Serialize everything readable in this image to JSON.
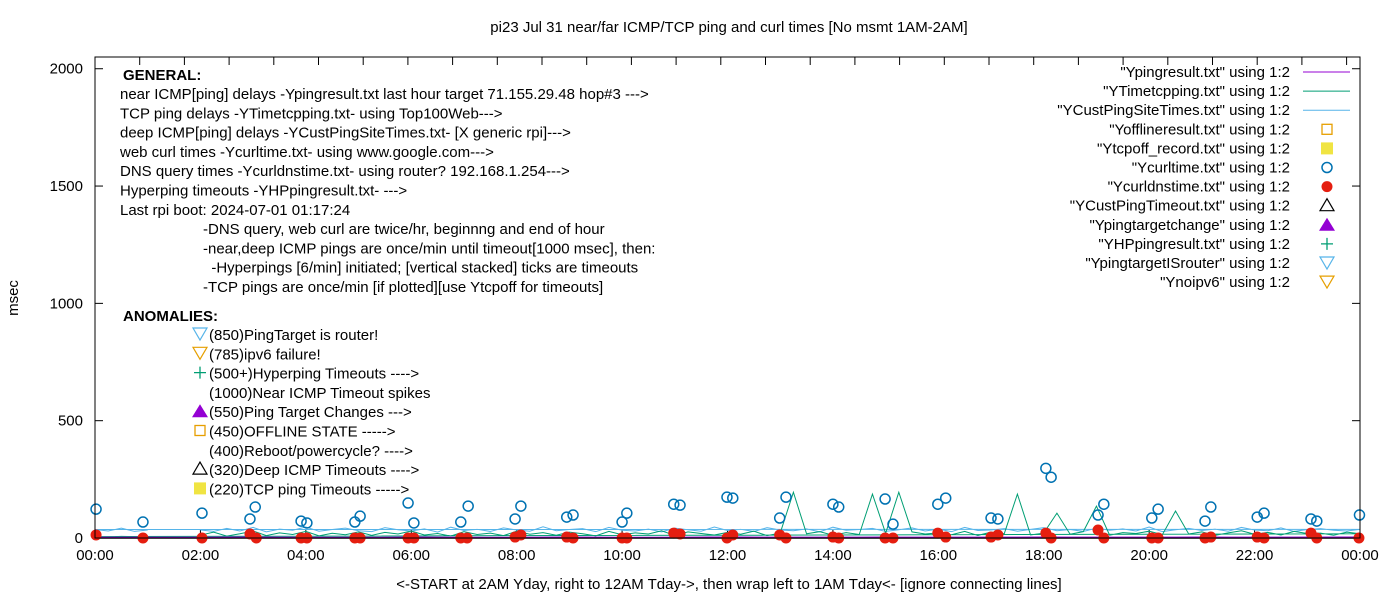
{
  "chart_data": {
    "type": "line",
    "title": "pi23 Jul 31  near/far ICMP/TCP ping and curl times [No msmt 1AM-2AM]",
    "xlabel": "<-START at 2AM Yday, right to 12AM Tday->, then wrap left to 1AM Tday<- [ignore connecting lines]",
    "ylabel": "msec",
    "xlim_hours": [
      0,
      24
    ],
    "ylim": [
      0,
      2050
    ],
    "x_tick_labels": [
      "00:00",
      "02:00",
      "04:00",
      "06:00",
      "08:00",
      "10:00",
      "12:00",
      "14:00",
      "16:00",
      "18:00",
      "20:00",
      "22:00",
      "00:00"
    ],
    "y_ticks": [
      0,
      500,
      1000,
      1500,
      2000
    ],
    "grid": false,
    "legend_placement": "top-right",
    "legend": [
      {
        "label": "\"Ypingresult.txt\" using 1:2",
        "marker": "line",
        "color": "#9400d3"
      },
      {
        "label": "\"YTimetcpping.txt\" using 1:2",
        "marker": "line",
        "color": "#009e73"
      },
      {
        "label": "\"YCustPingSiteTimes.txt\" using 1:2",
        "marker": "line",
        "color": "#56b4e9"
      },
      {
        "label": "\"Yofflineresult.txt\" using 1:2",
        "marker": "open-square",
        "color": "#e69f00"
      },
      {
        "label": "\"Ytcpoff_record.txt\" using 1:2",
        "marker": "filled-square",
        "color": "#f0e442"
      },
      {
        "label": "\"Ycurltime.txt\" using 1:2",
        "marker": "open-circle",
        "color": "#0072b2"
      },
      {
        "label": "\"Ycurldnstime.txt\" using 1:2",
        "marker": "filled-circle",
        "color": "#e51e10"
      },
      {
        "label": "\"YCustPingTimeout.txt\" using 1:2",
        "marker": "open-triangle",
        "color": "#000000"
      },
      {
        "label": "\"Ypingtargetchange\" using 1:2",
        "marker": "filled-triangle",
        "color": "#9400d3"
      },
      {
        "label": "\"YHPpingresult.txt\" using 1:2",
        "marker": "plus",
        "color": "#009e73"
      },
      {
        "label": "\"YpingtargetISrouter\" using 1:2",
        "marker": "open-down-triangle",
        "color": "#56b4e9"
      },
      {
        "label": "\"Ynoipv6\" using 1:2",
        "marker": "open-down-triangle",
        "color": "#e69f00"
      }
    ],
    "series": [
      {
        "name": "\"Ypingresult.txt\" using 1:2",
        "color": "#9400d3",
        "segments": [
          {
            "x_from": 2,
            "step_hours": 1,
            "values": [
              3,
              4,
              3,
              3,
              4,
              3,
              3,
              4,
              3,
              3,
              4,
              3,
              3,
              4,
              3,
              3,
              4,
              3,
              3,
              4,
              3,
              3,
              4
            ]
          },
          {
            "x_from": 0,
            "step_hours": 1,
            "values": [
              3,
              3
            ]
          }
        ]
      },
      {
        "name": "\"YTimetcpping.txt\" using 1:2",
        "color": "#009e73",
        "segments": [
          {
            "x_from": 2,
            "step_hours": 0.25,
            "values": [
              12,
              25,
              8,
              18,
              30,
              10,
              22,
              15,
              28,
              9,
              20,
              14,
              26,
              11,
              24,
              17,
              30,
              13,
              19,
              8,
              27,
              15,
              21,
              10,
              29,
              16,
              23,
              12,
              25,
              18,
              9,
              28,
              14,
              22,
              17,
              31,
              11,
              26,
              19,
              13,
              24,
              16,
              29,
              10,
              21,
              195,
              18,
              27,
              12,
              23,
              15,
              187,
              20,
              195,
              26,
              17,
              22,
              14,
              28,
              11,
              25,
              18,
              187,
              13,
              21,
              106,
              16,
              27,
              136,
              12,
              23,
              19,
              29,
              14,
              115,
              17,
              26,
              11,
              22,
              31,
              16,
              24,
              13,
              28,
              19,
              21,
              12,
              25,
              18
            ]
          },
          {
            "x_from": 0,
            "step_hours": 0.25,
            "values": [
              6,
              5,
              7,
              6,
              5
            ]
          }
        ]
      },
      {
        "name": "\"YCustPingSiteTimes.txt\" using 1:2",
        "color": "#56b4e9",
        "segments": [
          {
            "x_from": 2,
            "step_hours": 0.25,
            "values": [
              34,
              28,
              41,
              30,
              45,
              26,
              38,
              33,
              47,
              29,
              36,
              42,
              31,
              27,
              44,
              35,
              30,
              39,
              25,
              46,
              32,
              37,
              28,
              43,
              34,
              29,
              48,
              31,
              36,
              40,
              27,
              45,
              33,
              30,
              38,
              26,
              42,
              35,
              29,
              47,
              32,
              37,
              28,
              44,
              34,
              31,
              39,
              26,
              46,
              33,
              36,
              41,
              28,
              35,
              43,
              30,
              38,
              27,
              45,
              32,
              34,
              40,
              29,
              37,
              44,
              31,
              36,
              28,
              42,
              33,
              39,
              30,
              47,
              27,
              35,
              41,
              32,
              38,
              29,
              45,
              34,
              31,
              43,
              28,
              36,
              40,
              33,
              30,
              37
            ]
          },
          {
            "x_from": 0,
            "step_hours": 0.25,
            "values": [
              36,
              30,
              42,
              28,
              34
            ]
          }
        ]
      },
      {
        "name": "\"Ycurltime.txt\" using 1:2",
        "color": "#0072b2",
        "marker": "open-circle",
        "x": [
          0.02,
          0.91,
          2.03,
          2.94,
          3.04,
          3.91,
          4.02,
          4.93,
          5.03,
          5.94,
          6.05,
          6.94,
          7.08,
          7.97,
          8.08,
          8.95,
          9.07,
          10.0,
          10.09,
          10.98,
          11.1,
          11.99,
          12.1,
          12.99,
          13.11,
          14.0,
          14.11,
          14.99,
          15.14,
          15.99,
          16.14,
          17.0,
          17.13,
          18.04,
          18.14,
          19.03,
          19.14,
          20.05,
          20.17,
          21.06,
          21.17,
          22.05,
          22.18,
          23.07,
          23.18,
          23.99
        ],
        "y": [
          123,
          68,
          106,
          81,
          132,
          72,
          64,
          68,
          93,
          149,
          64,
          68,
          136,
          81,
          136,
          89,
          98,
          68,
          106,
          144,
          140,
          174,
          170,
          85,
          174,
          144,
          132,
          166,
          59,
          144,
          170,
          85,
          81,
          297,
          259,
          98,
          144,
          85,
          123,
          72,
          132,
          89,
          106,
          81,
          72,
          98
        ]
      },
      {
        "name": "\"Ycurldnstime.txt\" using 1:2",
        "color": "#e51e10",
        "marker": "filled-circle",
        "x": [
          0.02,
          0.91,
          2.03,
          2.94,
          3.06,
          3.91,
          4.02,
          4.93,
          5.03,
          5.94,
          6.05,
          6.94,
          7.06,
          7.97,
          8.08,
          8.95,
          9.07,
          10.0,
          10.09,
          10.98,
          11.1,
          11.99,
          12.1,
          12.99,
          13.11,
          14.0,
          14.11,
          14.99,
          15.14,
          15.99,
          16.14,
          17.0,
          17.13,
          18.04,
          18.14,
          19.03,
          19.14,
          20.05,
          20.17,
          21.06,
          21.17,
          22.05,
          22.18,
          23.07,
          23.18,
          23.98
        ],
        "y": [
          13,
          0,
          0,
          17,
          0,
          0,
          0,
          0,
          0,
          0,
          0,
          0,
          0,
          4,
          13,
          4,
          0,
          0,
          0,
          21,
          17,
          0,
          13,
          13,
          0,
          4,
          0,
          0,
          0,
          21,
          4,
          4,
          13,
          21,
          0,
          34,
          0,
          0,
          0,
          0,
          4,
          4,
          0,
          21,
          0,
          0
        ]
      }
    ]
  },
  "annotations": {
    "general_heading": "GENERAL:",
    "general_lines": [
      "near ICMP[ping] delays -Ypingresult.txt last hour target 71.155.29.48 hop#3 --->",
      "TCP ping delays -YTimetcpping.txt- using Top100Web--->",
      "deep ICMP[ping] delays -YCustPingSiteTimes.txt- [X generic rpi]--->",
      "web curl times -Ycurltime.txt- using www.google.com--->",
      "DNS query times -Ycurldnstime.txt- using router? 192.168.1.254--->",
      "Hyperping timeouts -YHPpingresult.txt- --->",
      "Last rpi boot: 2024-07-01 01:17:24"
    ],
    "notes": [
      "-DNS query, web curl are twice/hr, beginnng and end of hour",
      "-near,deep ICMP pings are once/min until timeout[1000 msec], then:",
      "  -Hyperpings [6/min] initiated; [vertical stacked] ticks are timeouts",
      "-TCP pings are once/min [if plotted][use Ytcpoff for timeouts]"
    ],
    "anomalies_heading": "ANOMALIES:",
    "anomalies": [
      {
        "text": "(850)PingTarget is router!",
        "marker": "open-down-triangle",
        "color": "#56b4e9"
      },
      {
        "text": "(785)ipv6 failure!",
        "marker": "open-down-triangle",
        "color": "#e69f00"
      },
      {
        "text": "(500+)Hyperping Timeouts ---->",
        "marker": "plus",
        "color": "#009e73"
      },
      {
        "text": "(1000)Near ICMP Timeout spikes",
        "marker": "none",
        "color": "#000000"
      },
      {
        "text": "(550)Ping Target Changes --->",
        "marker": "filled-triangle",
        "color": "#9400d3"
      },
      {
        "text": "(450)OFFLINE STATE ----->",
        "marker": "open-square",
        "color": "#e69f00"
      },
      {
        "text": "(400)Reboot/powercycle? ---->",
        "marker": "none",
        "color": "#000000"
      },
      {
        "text": "(320)Deep ICMP Timeouts ---->",
        "marker": "open-triangle",
        "color": "#000000"
      },
      {
        "text": "(220)TCP ping Timeouts ----->",
        "marker": "filled-square",
        "color": "#f0e442"
      }
    ]
  }
}
